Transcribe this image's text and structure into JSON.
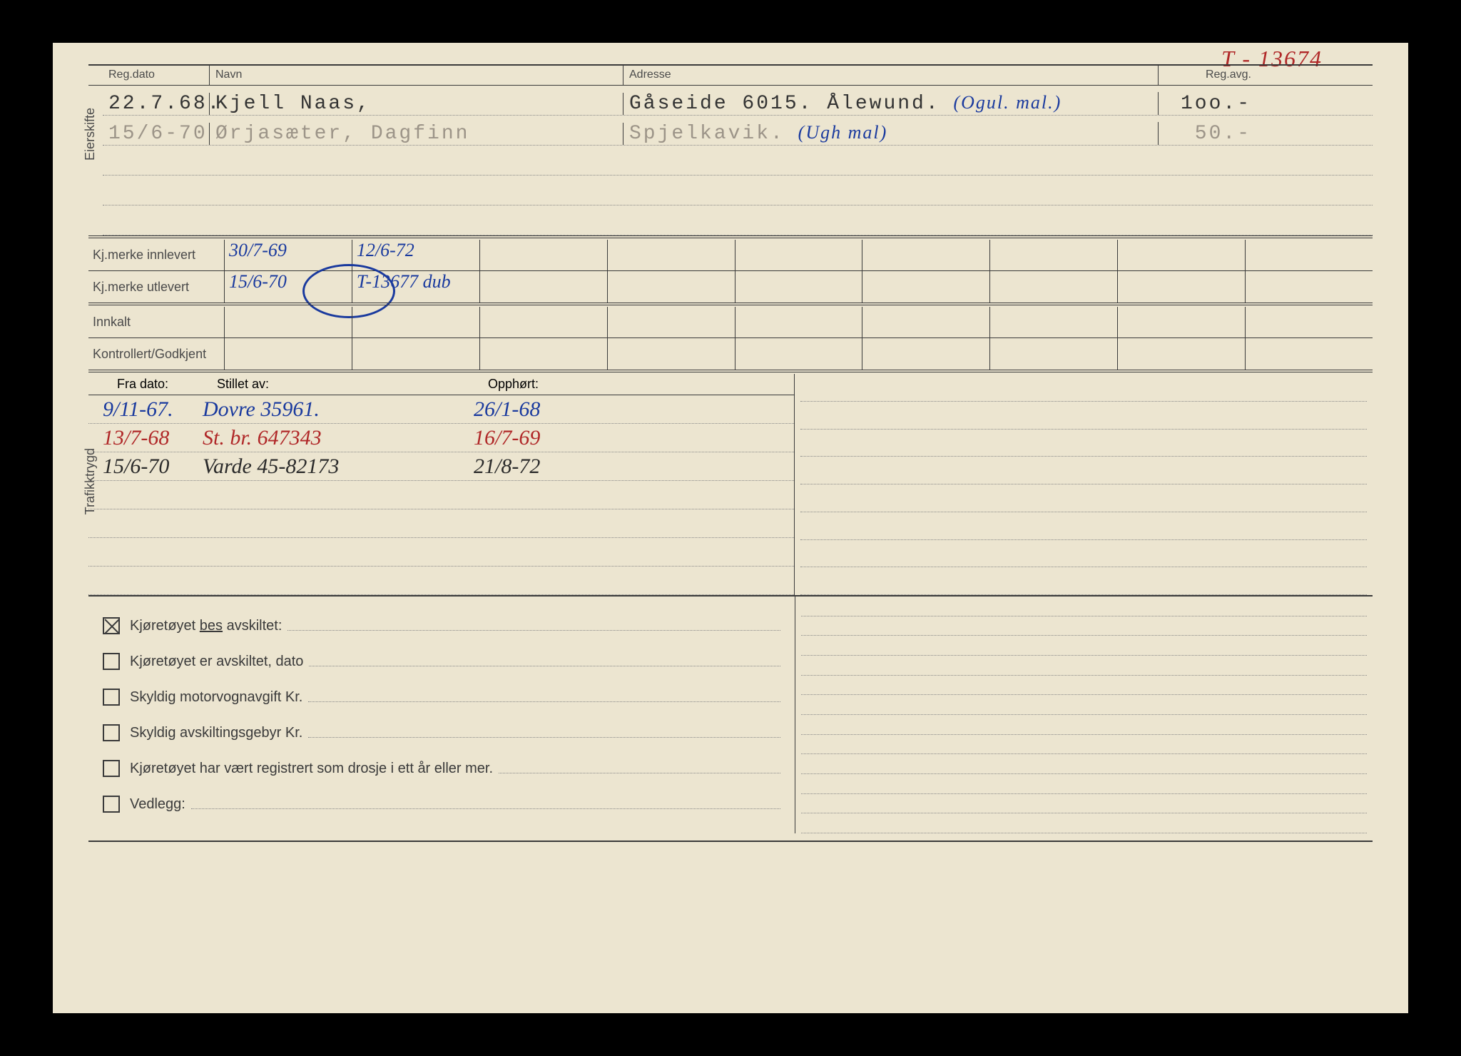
{
  "colors": {
    "paper": "#ece5d0",
    "ink": "#3a3a3a",
    "typed": "#333333",
    "faded_typed": "#9c9488",
    "blue_pen": "#1a3a9e",
    "red_pen": "#b02828",
    "border_black": "#000000"
  },
  "top_note_red": "T - 13674",
  "eierskifte": {
    "vlabel": "Eierskifte",
    "headers": {
      "regdato": "Reg.dato",
      "navn": "Navn",
      "adresse": "Adresse",
      "regavg": "Reg.avg."
    },
    "rows": [
      {
        "regdato": "22.7.68.",
        "navn": "Kjell Naas,",
        "adresse": "Gåseide 6015. Ålewund.",
        "adresse_annot": "(Ogul. mal.)",
        "regavg": "1oo.-",
        "faded": false
      },
      {
        "regdato": "15/6-70",
        "navn": "Ørjasæter, Dagfinn",
        "adresse": "Spjelkavik.",
        "adresse_annot": "(Ugh mal)",
        "regavg": "50.-",
        "faded": true
      }
    ],
    "blank_rows": 3
  },
  "kjmerke": {
    "innlevert_label": "Kj.merke innlevert",
    "utlevert_label": "Kj.merke utlevert",
    "innlevert_values": [
      "30/7-69",
      "12/6-72"
    ],
    "utlevert_values": [
      "15/6-70",
      "T-13677 dub"
    ],
    "circle_on": "utlevert_cell_2",
    "cells": 9
  },
  "innkalt_label": "Innkalt",
  "kontrollert_label": "Kontrollert/Godkjent",
  "trafikktrygd": {
    "vlabel": "Trafikktrygd",
    "headers": {
      "fra": "Fra dato:",
      "stillet": "Stillet av:",
      "opphort": "Opphørt:"
    },
    "rows": [
      {
        "fra": "9/11-67.",
        "stillet": "Dovre 35961.",
        "opphort": "26/1-68",
        "color": "blue"
      },
      {
        "fra": "13/7-68",
        "stillet": "St. br. 647343",
        "opphort": "16/7-69",
        "color": "red"
      },
      {
        "fra": "15/6-70",
        "stillet": "Varde 45-82173",
        "opphort": "21/8-72",
        "color": "dark"
      }
    ],
    "blank_rows": 4
  },
  "checkboxes": [
    {
      "label_pre": "Kjøretøyet ",
      "label_underline": "bes",
      "label_post": " avskiltet:",
      "checked": true
    },
    {
      "label": "Kjøretøyet er avskiltet, dato",
      "checked": false
    },
    {
      "label": "Skyldig motorvognavgift Kr.",
      "checked": false
    },
    {
      "label": "Skyldig avskiltingsgebyr Kr.",
      "checked": false
    },
    {
      "label": "Kjøretøyet har vært registrert som drosje i ett år eller mer.",
      "checked": false
    },
    {
      "label": "Vedlegg:",
      "checked": false
    }
  ],
  "right_panel_rows": 12
}
